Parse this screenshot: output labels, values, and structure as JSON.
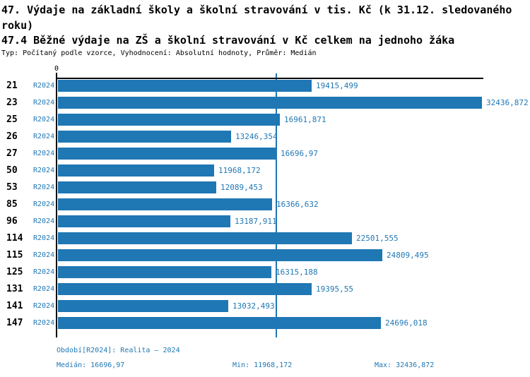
{
  "page": {
    "title": "47. Výdaje na základní školy a školní stravování v tis. Kč (k 31.12. sledovaného roku)",
    "subtitle": "47.4 Běžné výdaje na ZŠ a školní stravování v Kč celkem na jednoho žáka",
    "meta": "Typ: Počítaný podle vzorce, Vyhodnocení: Absolutní hodnoty, Průměr: Medián"
  },
  "chart_data": {
    "type": "bar",
    "orientation": "horizontal",
    "title": "47.4 Běžné výdaje na ZŠ a školní stravování v Kč celkem na jednoho žáka",
    "series_label": "R2024",
    "categories": [
      "21",
      "23",
      "25",
      "26",
      "27",
      "50",
      "53",
      "85",
      "96",
      "114",
      "115",
      "125",
      "131",
      "141",
      "147"
    ],
    "values": [
      19415.499,
      32436.872,
      16961.871,
      13246.354,
      16696.97,
      11968.172,
      12089.453,
      16366.632,
      13187.911,
      22501.555,
      24809.495,
      16315.188,
      19395.55,
      13032.493,
      24696.018
    ],
    "value_labels": [
      "19415,499",
      "32436,872",
      "16961,871",
      "13246,354",
      "16696,97",
      "11968,172",
      "12089,453",
      "16366,632",
      "13187,911",
      "22501,555",
      "24809,495",
      "16315,188",
      "19395,55",
      "13032,493",
      "24696,018"
    ],
    "axis": {
      "zero_label": "0",
      "x_min": 0,
      "x_max": 32436.872,
      "grid": false
    },
    "median_value": 16696.97,
    "min_value": 11968.172,
    "max_value": 32436.872,
    "legend_position": "none",
    "colors": {
      "bar": "#1f77b4",
      "text_accent": "#1f77b4",
      "axis": "#000000",
      "median_line": "#1f77b4"
    }
  },
  "footer": {
    "period": "Období[R2024]: Realita – 2024",
    "median": "Medián: 16696,97",
    "min": "Min: 11968,172",
    "max": "Max: 32436,872"
  }
}
